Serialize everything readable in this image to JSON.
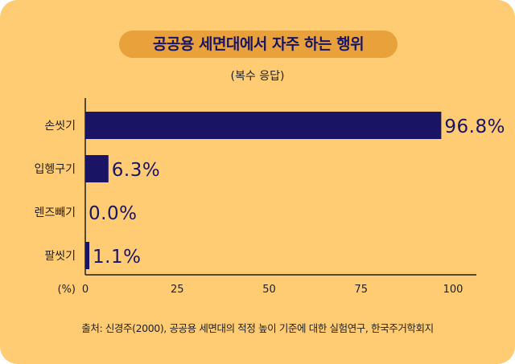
{
  "chart_data": {
    "type": "bar",
    "orientation": "horizontal",
    "title": "공공용 세면대에서 자주 하는 행위",
    "subtitle": "(복수 응답)",
    "xlabel": "(%)",
    "categories": [
      "손씻기",
      "입헹구기",
      "렌즈빼기",
      "팔씻기"
    ],
    "values": [
      96.8,
      6.3,
      0.0,
      1.1
    ],
    "value_labels": [
      "96.8%",
      "6.3%",
      "0.0%",
      "1.1%"
    ],
    "xlim": [
      0,
      100
    ],
    "xticks": [
      0,
      25,
      50,
      75,
      100
    ],
    "xtick_labels": [
      "0",
      "25",
      "50",
      "75",
      "100"
    ],
    "grid": false,
    "legend": "none"
  },
  "source": "출처: 신경주(2000), 공공용 세면대의 적정 높이 기준에 대한 실험연구, 한국주거학회지",
  "colors": {
    "background": "#FFCB73",
    "title_pill": "#E9A23B",
    "bar": "#1A1464",
    "text": "#1F1F1F"
  }
}
